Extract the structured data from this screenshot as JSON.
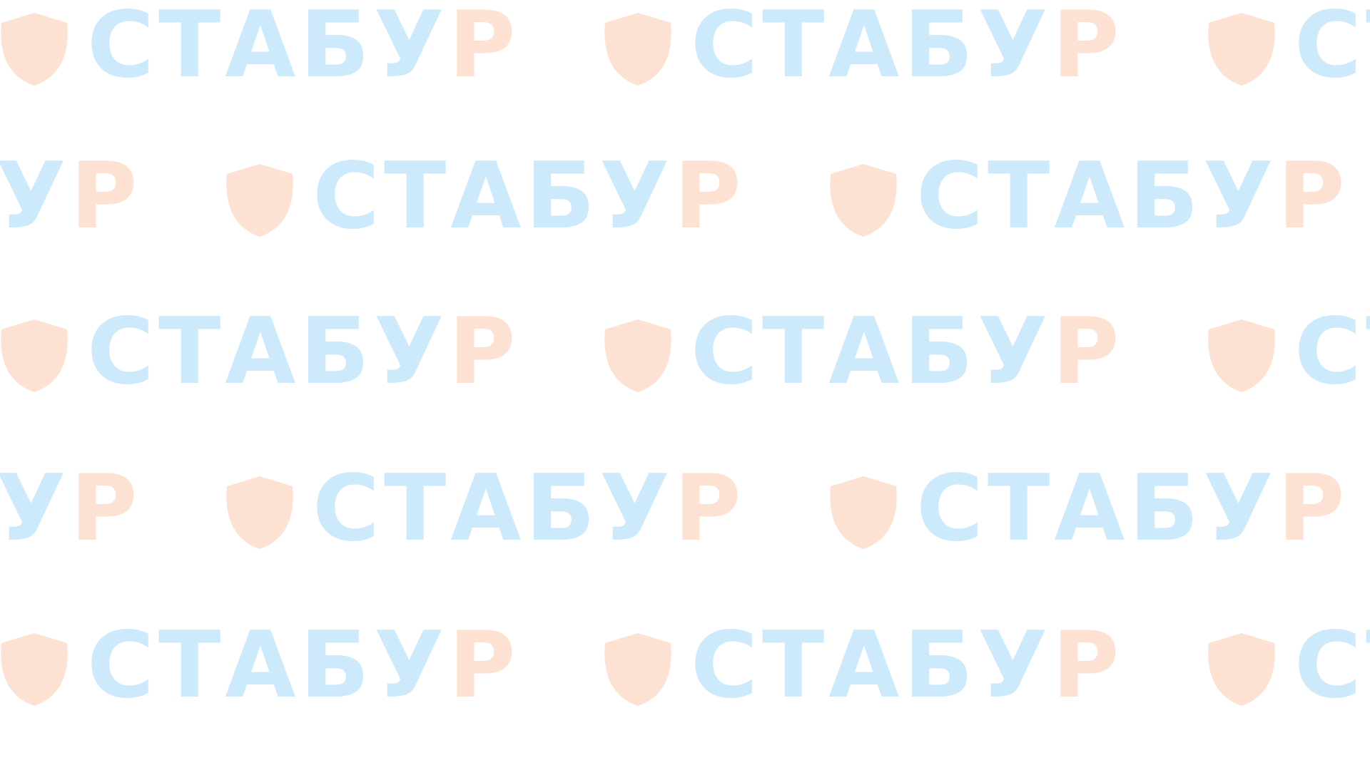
{
  "logo": {
    "word_blue": "СТАБУ",
    "word_orange": "Р",
    "icon": "shield-icon"
  },
  "colors": {
    "blue": "#cdeafc",
    "orange": "#fde2d3",
    "background": "#ffffff"
  }
}
